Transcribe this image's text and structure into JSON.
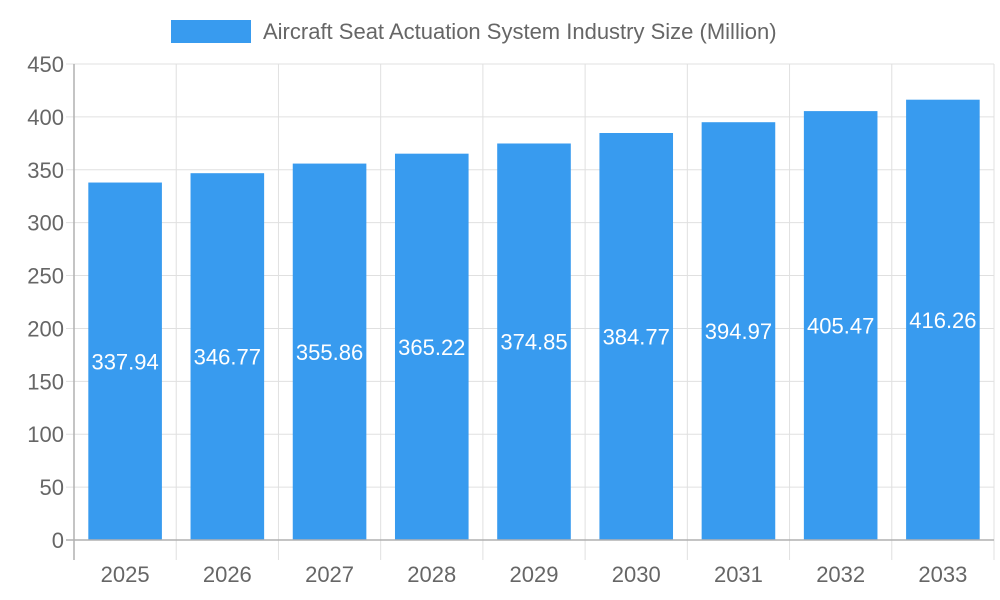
{
  "chart_data": {
    "type": "bar",
    "title": "",
    "xlabel": "",
    "ylabel": "",
    "categories": [
      "2025",
      "2026",
      "2027",
      "2028",
      "2029",
      "2030",
      "2031",
      "2032",
      "2033"
    ],
    "series": [
      {
        "name": "Aircraft Seat Actuation System Industry Size (Million)",
        "values": [
          337.94,
          346.77,
          355.86,
          365.22,
          374.85,
          384.77,
          394.97,
          405.47,
          416.26
        ]
      }
    ],
    "ylim": [
      0,
      450
    ],
    "yticks": [
      0,
      50,
      100,
      150,
      200,
      250,
      300,
      350,
      400,
      450
    ],
    "grid": true,
    "legend_position": "top",
    "data_labels": true,
    "colors": {
      "bar": "#389bef",
      "grid": "#e0e0e0",
      "axis": "#b0b0b0",
      "tick_text": "#666666",
      "label_text": "#ffffff"
    }
  }
}
